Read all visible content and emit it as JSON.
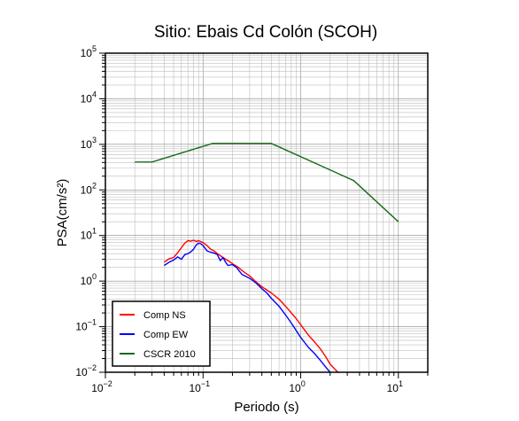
{
  "chart_data": {
    "type": "line",
    "title": "Sitio: Ebais Cd Colón (SCOH)",
    "xlabel": "Periodo (s)",
    "ylabel": "PSA(cm/s²)",
    "x_scale": "log",
    "y_scale": "log",
    "xlim": [
      0.01,
      20
    ],
    "ylim": [
      0.01,
      100000
    ],
    "x_ticks": [
      {
        "value": 0.01,
        "mantissa": "10",
        "exp": "−2"
      },
      {
        "value": 0.1,
        "mantissa": "10",
        "exp": "−1"
      },
      {
        "value": 1,
        "mantissa": "10",
        "exp": "0"
      },
      {
        "value": 10,
        "mantissa": "10",
        "exp": "1"
      }
    ],
    "y_ticks": [
      {
        "value": 0.01,
        "mantissa": "10",
        "exp": "−2"
      },
      {
        "value": 0.1,
        "mantissa": "10",
        "exp": "−1"
      },
      {
        "value": 1,
        "mantissa": "10",
        "exp": "0"
      },
      {
        "value": 10,
        "mantissa": "10",
        "exp": "1"
      },
      {
        "value": 100,
        "mantissa": "10",
        "exp": "2"
      },
      {
        "value": 1000,
        "mantissa": "10",
        "exp": "3"
      },
      {
        "value": 10000,
        "mantissa": "10",
        "exp": "4"
      },
      {
        "value": 100000,
        "mantissa": "10",
        "exp": "5"
      }
    ],
    "grid": true,
    "legend_position": "bottom-left",
    "series": [
      {
        "name": "Comp NS",
        "color": "#ff0000",
        "points": [
          [
            0.04,
            2.6
          ],
          [
            0.045,
            3.1
          ],
          [
            0.05,
            3.3
          ],
          [
            0.055,
            4.2
          ],
          [
            0.06,
            5.4
          ],
          [
            0.065,
            6.8
          ],
          [
            0.07,
            7.7
          ],
          [
            0.075,
            7.5
          ],
          [
            0.08,
            7.9
          ],
          [
            0.085,
            7.4
          ],
          [
            0.09,
            7.7
          ],
          [
            0.1,
            7.0
          ],
          [
            0.11,
            6.0
          ],
          [
            0.12,
            5.0
          ],
          [
            0.13,
            4.6
          ],
          [
            0.14,
            4.0
          ],
          [
            0.16,
            3.3
          ],
          [
            0.18,
            2.8
          ],
          [
            0.2,
            2.4
          ],
          [
            0.23,
            2.0
          ],
          [
            0.26,
            1.6
          ],
          [
            0.3,
            1.3
          ],
          [
            0.35,
            0.95
          ],
          [
            0.4,
            0.75
          ],
          [
            0.5,
            0.55
          ],
          [
            0.6,
            0.4
          ],
          [
            0.7,
            0.28
          ],
          [
            0.8,
            0.2
          ],
          [
            0.9,
            0.15
          ],
          [
            1.0,
            0.11
          ],
          [
            1.2,
            0.065
          ],
          [
            1.4,
            0.045
          ],
          [
            1.6,
            0.032
          ],
          [
            1.8,
            0.022
          ],
          [
            2.0,
            0.015
          ],
          [
            2.4,
            0.01
          ]
        ]
      },
      {
        "name": "Comp EW",
        "color": "#0000ff",
        "points": [
          [
            0.04,
            2.2
          ],
          [
            0.045,
            2.6
          ],
          [
            0.05,
            2.9
          ],
          [
            0.055,
            3.4
          ],
          [
            0.06,
            3.0
          ],
          [
            0.065,
            3.8
          ],
          [
            0.07,
            4.0
          ],
          [
            0.075,
            4.4
          ],
          [
            0.08,
            5.0
          ],
          [
            0.085,
            6.2
          ],
          [
            0.09,
            6.8
          ],
          [
            0.095,
            6.6
          ],
          [
            0.1,
            6.0
          ],
          [
            0.11,
            4.6
          ],
          [
            0.12,
            4.3
          ],
          [
            0.13,
            4.1
          ],
          [
            0.14,
            3.8
          ],
          [
            0.15,
            2.8
          ],
          [
            0.16,
            3.3
          ],
          [
            0.17,
            2.6
          ],
          [
            0.18,
            2.2
          ],
          [
            0.2,
            2.3
          ],
          [
            0.22,
            2.0
          ],
          [
            0.25,
            1.4
          ],
          [
            0.3,
            1.15
          ],
          [
            0.35,
            0.9
          ],
          [
            0.4,
            0.68
          ],
          [
            0.45,
            0.55
          ],
          [
            0.5,
            0.42
          ],
          [
            0.6,
            0.28
          ],
          [
            0.7,
            0.18
          ],
          [
            0.8,
            0.12
          ],
          [
            0.9,
            0.082
          ],
          [
            1.0,
            0.058
          ],
          [
            1.2,
            0.035
          ],
          [
            1.4,
            0.025
          ],
          [
            1.6,
            0.018
          ],
          [
            1.8,
            0.013
          ],
          [
            2.0,
            0.01
          ]
        ]
      },
      {
        "name": "CSCR 2010",
        "color": "#1a6b1a",
        "points": [
          [
            0.02,
            410
          ],
          [
            0.03,
            410
          ],
          [
            0.125,
            1050
          ],
          [
            0.5,
            1050
          ],
          [
            3.5,
            160
          ],
          [
            10,
            20
          ]
        ]
      }
    ]
  }
}
